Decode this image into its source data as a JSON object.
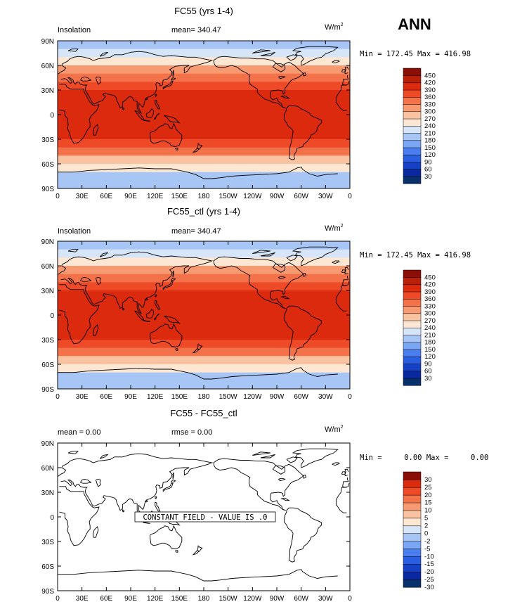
{
  "season_label": "ANN",
  "colors": {
    "scale_insolation": [
      "#08306b",
      "#0a28a0",
      "#1541c6",
      "#2a5ee0",
      "#4a7ef0",
      "#7aa6f4",
      "#a7c6f6",
      "#d6e6f8",
      "#fde7d3",
      "#f9c3a2",
      "#f79a72",
      "#f4724a",
      "#ef4a28",
      "#dc2a0e",
      "#b8200a",
      "#8a0e06"
    ],
    "scale_difference": [
      "#08306b",
      "#0a28a0",
      "#1541c6",
      "#2a5ee0",
      "#4a7ef0",
      "#7aa6f4",
      "#a7c6f6",
      "#d6e6f8",
      "#fde7d3",
      "#f9c3a2",
      "#f79a72",
      "#f4724a",
      "#ef4a28",
      "#dc2a0e",
      "#8a0e06"
    ],
    "coast": "#000000"
  },
  "chart_data": [
    {
      "type": "heatmap",
      "title": "FC55 (yrs 1-4)",
      "left_label": "Insolation",
      "center_label": "mean= 340.47",
      "units": "W/m",
      "units_sup": "2",
      "minmax_text": "Min = 172.45 Max = 416.98",
      "min": 172.45,
      "max": 416.98,
      "mean": 340.47,
      "x_ticks": [
        "0",
        "30E",
        "60E",
        "90E",
        "120E",
        "150E",
        "180",
        "150W",
        "120W",
        "90W",
        "60W",
        "30W",
        "0"
      ],
      "y_ticks": [
        "90N",
        "60N",
        "30N",
        "0",
        "30S",
        "60S",
        "90S"
      ],
      "colorbar_levels": [
        "450",
        "420",
        "390",
        "360",
        "330",
        "300",
        "270",
        "240",
        "210",
        "180",
        "150",
        "120",
        "90",
        "60",
        "30"
      ],
      "zonal_mean_by_lat": [
        [
          90,
          172
        ],
        [
          80,
          195
        ],
        [
          70,
          240
        ],
        [
          60,
          280
        ],
        [
          50,
          320
        ],
        [
          40,
          360
        ],
        [
          30,
          390
        ],
        [
          20,
          410
        ],
        [
          10,
          417
        ],
        [
          0,
          415
        ],
        [
          -10,
          415
        ],
        [
          -20,
          405
        ],
        [
          -30,
          385
        ],
        [
          -40,
          350
        ],
        [
          -50,
          315
        ],
        [
          -60,
          265
        ],
        [
          -70,
          225
        ],
        [
          -80,
          190
        ],
        [
          -90,
          172
        ]
      ]
    },
    {
      "type": "heatmap",
      "title": "FC55_ctl (yrs 1-4)",
      "left_label": "Insolation",
      "center_label": "mean= 340.47",
      "units": "W/m",
      "units_sup": "2",
      "minmax_text": "Min = 172.45 Max = 416.98",
      "min": 172.45,
      "max": 416.98,
      "mean": 340.47,
      "x_ticks": [
        "0",
        "30E",
        "60E",
        "90E",
        "120E",
        "150E",
        "180",
        "150W",
        "120W",
        "90W",
        "60W",
        "30W",
        "0"
      ],
      "y_ticks": [
        "90N",
        "60N",
        "30N",
        "0",
        "30S",
        "60S",
        "90S"
      ],
      "colorbar_levels": [
        "450",
        "420",
        "390",
        "360",
        "330",
        "300",
        "270",
        "240",
        "210",
        "180",
        "150",
        "120",
        "90",
        "60",
        "30"
      ],
      "zonal_mean_by_lat": [
        [
          90,
          172
        ],
        [
          80,
          195
        ],
        [
          70,
          240
        ],
        [
          60,
          280
        ],
        [
          50,
          320
        ],
        [
          40,
          360
        ],
        [
          30,
          390
        ],
        [
          20,
          410
        ],
        [
          10,
          417
        ],
        [
          0,
          415
        ],
        [
          -10,
          415
        ],
        [
          -20,
          405
        ],
        [
          -30,
          385
        ],
        [
          -40,
          350
        ],
        [
          -50,
          315
        ],
        [
          -60,
          265
        ],
        [
          -70,
          225
        ],
        [
          -80,
          190
        ],
        [
          -90,
          172
        ]
      ]
    },
    {
      "type": "heatmap",
      "title": "FC55 - FC55_ctl",
      "left_label": "mean =     0.00",
      "center_label": "rmse =     0.00",
      "units": "W/m",
      "units_sup": "2",
      "minmax_text": "Min =     0.00 Max =     0.00",
      "min": 0.0,
      "max": 0.0,
      "mean": 0.0,
      "rmse": 0.0,
      "constant_field_text": "CONSTANT FIELD - VALUE IS .0",
      "x_ticks": [
        "0",
        "30E",
        "60E",
        "90E",
        "120E",
        "150E",
        "180",
        "150W",
        "120W",
        "90W",
        "60W",
        "30W",
        "0"
      ],
      "y_ticks": [
        "90N",
        "60N",
        "30N",
        "0",
        "30S",
        "60S",
        "90S"
      ],
      "colorbar_levels": [
        "30",
        "25",
        "20",
        "15",
        "10",
        "5",
        "2",
        "0",
        "-2",
        "-5",
        "-10",
        "-15",
        "-20",
        "-25",
        "-30"
      ]
    }
  ]
}
